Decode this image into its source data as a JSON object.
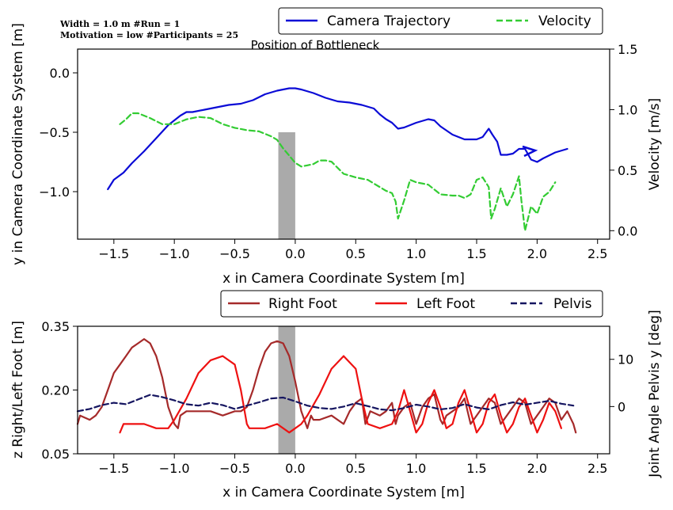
{
  "annotations": {
    "line1": "Width = 1.0 m        #Run = 1",
    "line2": "Motivation = low   #Participants = 25",
    "bottleneck_label": "Position of Bottleneck"
  },
  "chart_data": [
    {
      "type": "line",
      "panel": "top",
      "xlabel": "x in Camera Coordinate System [m]",
      "ylabel": "y in Camera Coordinate System [m]",
      "ylabel_right": "Velocity [m/s]",
      "xlim": [
        -1.8,
        2.6
      ],
      "ylim": [
        -1.4,
        0.2
      ],
      "ylim_right": [
        -0.07,
        1.5
      ],
      "xticks": [
        -1.5,
        -1.0,
        -0.5,
        0.0,
        0.5,
        1.0,
        1.5,
        2.0,
        2.5
      ],
      "xtick_labels": [
        "−1.5",
        "−1.0",
        "−0.5",
        "0.0",
        "0.5",
        "1.0",
        "1.5",
        "2.0",
        "2.5"
      ],
      "yticks": [
        0.0,
        -0.5,
        -1.0
      ],
      "ytick_labels": [
        "0.0",
        "−0.5",
        "−1.0"
      ],
      "yticks_right": [
        1.5,
        1.0,
        0.5,
        0.0
      ],
      "ytick_labels_right": [
        "1.5",
        "1.0",
        "0.5",
        "0.0"
      ],
      "legend_position": "top-right",
      "bottleneck": {
        "x": [
          -0.14,
          0.0
        ],
        "y": [
          -1.4,
          -0.5
        ],
        "color": "#aaaaaa"
      },
      "series": [
        {
          "name": "Camera Trajectory",
          "axis": "left",
          "color": "#0b0bd6",
          "style": "solid",
          "x": [
            -1.55,
            -1.5,
            -1.42,
            -1.35,
            -1.25,
            -1.15,
            -1.05,
            -0.95,
            -0.9,
            -0.85,
            -0.75,
            -0.65,
            -0.55,
            -0.45,
            -0.35,
            -0.25,
            -0.15,
            -0.1,
            -0.05,
            0.0,
            0.05,
            0.15,
            0.25,
            0.35,
            0.45,
            0.55,
            0.65,
            0.7,
            0.75,
            0.8,
            0.85,
            0.9,
            1.0,
            1.1,
            1.15,
            1.2,
            1.3,
            1.4,
            1.5,
            1.55,
            1.6,
            1.63,
            1.67,
            1.7,
            1.75,
            1.8,
            1.85,
            1.9,
            1.95,
            2.0,
            2.05,
            2.15,
            2.25
          ],
          "y": [
            -0.98,
            -0.9,
            -0.84,
            -0.76,
            -0.66,
            -0.55,
            -0.44,
            -0.36,
            -0.33,
            -0.33,
            -0.31,
            -0.29,
            -0.27,
            -0.26,
            -0.23,
            -0.18,
            -0.15,
            -0.14,
            -0.13,
            -0.13,
            -0.14,
            -0.17,
            -0.21,
            -0.24,
            -0.25,
            -0.27,
            -0.3,
            -0.35,
            -0.39,
            -0.42,
            -0.47,
            -0.46,
            -0.42,
            -0.39,
            -0.4,
            -0.45,
            -0.52,
            -0.56,
            -0.56,
            -0.54,
            -0.47,
            -0.52,
            -0.58,
            -0.69,
            -0.69,
            -0.68,
            -0.64,
            -0.64,
            -0.73,
            -0.75,
            -0.72,
            -0.67,
            -0.64
          ]
        },
        {
          "name": "Velocity",
          "axis": "right",
          "color": "#33cc33",
          "style": "dashed",
          "x": [
            -1.45,
            -1.4,
            -1.35,
            -1.3,
            -1.2,
            -1.1,
            -1.0,
            -0.9,
            -0.8,
            -0.7,
            -0.6,
            -0.5,
            -0.4,
            -0.3,
            -0.2,
            -0.15,
            -0.1,
            -0.05,
            0.0,
            0.05,
            0.1,
            0.15,
            0.2,
            0.25,
            0.3,
            0.4,
            0.5,
            0.6,
            0.7,
            0.75,
            0.8,
            0.83,
            0.85,
            0.9,
            0.95,
            1.0,
            1.1,
            1.2,
            1.3,
            1.35,
            1.4,
            1.45,
            1.5,
            1.55,
            1.6,
            1.62,
            1.65,
            1.7,
            1.75,
            1.8,
            1.85,
            1.87,
            1.9,
            1.95,
            2.0,
            2.05,
            2.1,
            2.15
          ],
          "y": [
            0.88,
            0.92,
            0.97,
            0.97,
            0.93,
            0.88,
            0.88,
            0.92,
            0.94,
            0.93,
            0.88,
            0.85,
            0.83,
            0.82,
            0.78,
            0.75,
            0.68,
            0.62,
            0.56,
            0.53,
            0.54,
            0.55,
            0.58,
            0.58,
            0.57,
            0.47,
            0.44,
            0.42,
            0.36,
            0.33,
            0.31,
            0.24,
            0.1,
            0.25,
            0.42,
            0.4,
            0.38,
            0.3,
            0.29,
            0.29,
            0.27,
            0.3,
            0.42,
            0.44,
            0.36,
            0.1,
            0.18,
            0.35,
            0.2,
            0.3,
            0.45,
            0.25,
            0.0,
            0.2,
            0.14,
            0.28,
            0.32,
            0.4
          ]
        }
      ]
    },
    {
      "type": "line",
      "panel": "bottom",
      "xlabel": "x in Camera Coordinate System [m]",
      "ylabel": "z Right/Left Foot [m]",
      "ylabel_right": "Joint Angle Pelvis y [deg]",
      "xlim": [
        -1.8,
        2.6
      ],
      "ylim": [
        0.05,
        0.35
      ],
      "ylim_right": [
        -10,
        17
      ],
      "xticks": [
        -1.5,
        -1.0,
        -0.5,
        0.0,
        0.5,
        1.0,
        1.5,
        2.0,
        2.5
      ],
      "xtick_labels": [
        "−1.5",
        "−1.0",
        "−0.5",
        "0.0",
        "0.5",
        "1.0",
        "1.5",
        "2.0",
        "2.5"
      ],
      "yticks": [
        0.35,
        0.2,
        0.05
      ],
      "ytick_labels": [
        "0.35",
        "0.20",
        "0.05"
      ],
      "yticks_right": [
        10,
        0
      ],
      "ytick_labels_right": [
        "10",
        "0"
      ],
      "legend_position": "top-right",
      "bottleneck": {
        "x": [
          -0.14,
          0.0
        ],
        "y": [
          0.05,
          0.35
        ],
        "color": "#aaaaaa"
      },
      "series": [
        {
          "name": "Right Foot",
          "axis": "left",
          "color": "#a52a2a",
          "style": "solid",
          "x": [
            -1.8,
            -1.78,
            -1.7,
            -1.65,
            -1.6,
            -1.55,
            -1.5,
            -1.45,
            -1.4,
            -1.35,
            -1.3,
            -1.25,
            -1.2,
            -1.15,
            -1.1,
            -1.05,
            -1.0,
            -0.97,
            -0.95,
            -0.9,
            -0.8,
            -0.7,
            -0.6,
            -0.5,
            -0.45,
            -0.4,
            -0.35,
            -0.3,
            -0.25,
            -0.2,
            -0.15,
            -0.1,
            -0.05,
            0.0,
            0.05,
            0.1,
            0.13,
            0.15,
            0.2,
            0.3,
            0.4,
            0.45,
            0.5,
            0.55,
            0.58,
            0.62,
            0.7,
            0.75,
            0.8,
            0.83,
            0.85,
            0.9,
            0.95,
            1.0,
            1.05,
            1.1,
            1.15,
            1.2,
            1.22,
            1.25,
            1.3,
            1.35,
            1.4,
            1.45,
            1.5,
            1.55,
            1.6,
            1.65,
            1.7,
            1.75,
            1.8,
            1.85,
            1.9,
            1.95,
            2.0,
            2.05,
            2.1,
            2.15,
            2.2,
            2.25,
            2.3,
            2.32
          ],
          "y": [
            0.12,
            0.14,
            0.13,
            0.14,
            0.16,
            0.2,
            0.24,
            0.26,
            0.28,
            0.3,
            0.31,
            0.32,
            0.31,
            0.28,
            0.23,
            0.16,
            0.12,
            0.11,
            0.14,
            0.15,
            0.15,
            0.15,
            0.14,
            0.15,
            0.15,
            0.16,
            0.2,
            0.25,
            0.29,
            0.31,
            0.315,
            0.31,
            0.28,
            0.22,
            0.15,
            0.11,
            0.14,
            0.13,
            0.13,
            0.14,
            0.12,
            0.15,
            0.17,
            0.18,
            0.12,
            0.15,
            0.14,
            0.15,
            0.17,
            0.12,
            0.14,
            0.16,
            0.17,
            0.12,
            0.16,
            0.18,
            0.19,
            0.13,
            0.12,
            0.14,
            0.15,
            0.16,
            0.18,
            0.12,
            0.14,
            0.16,
            0.18,
            0.17,
            0.12,
            0.14,
            0.16,
            0.18,
            0.17,
            0.12,
            0.14,
            0.16,
            0.18,
            0.17,
            0.13,
            0.15,
            0.12,
            0.1
          ]
        },
        {
          "name": "Left Foot",
          "axis": "left",
          "color": "#ee1111",
          "style": "solid",
          "x": [
            -1.45,
            -1.42,
            -1.35,
            -1.25,
            -1.15,
            -1.05,
            -1.0,
            -0.9,
            -0.8,
            -0.7,
            -0.6,
            -0.5,
            -0.45,
            -0.4,
            -0.38,
            -0.33,
            -0.25,
            -0.15,
            -0.05,
            0.0,
            0.05,
            0.1,
            0.2,
            0.3,
            0.4,
            0.5,
            0.55,
            0.6,
            0.7,
            0.8,
            0.85,
            0.9,
            0.95,
            1.0,
            1.05,
            1.1,
            1.15,
            1.2,
            1.25,
            1.3,
            1.35,
            1.4,
            1.45,
            1.5,
            1.55,
            1.6,
            1.65,
            1.7,
            1.75,
            1.8,
            1.85,
            1.9,
            1.95,
            2.0,
            2.05,
            2.1,
            2.15,
            2.2
          ],
          "y": [
            0.1,
            0.12,
            0.12,
            0.12,
            0.11,
            0.11,
            0.13,
            0.18,
            0.24,
            0.27,
            0.28,
            0.26,
            0.2,
            0.12,
            0.11,
            0.11,
            0.11,
            0.12,
            0.1,
            0.11,
            0.12,
            0.14,
            0.19,
            0.25,
            0.28,
            0.25,
            0.18,
            0.12,
            0.11,
            0.12,
            0.15,
            0.2,
            0.15,
            0.1,
            0.12,
            0.17,
            0.2,
            0.16,
            0.11,
            0.12,
            0.17,
            0.2,
            0.15,
            0.1,
            0.12,
            0.17,
            0.19,
            0.14,
            0.1,
            0.12,
            0.16,
            0.18,
            0.14,
            0.1,
            0.13,
            0.17,
            0.15,
            0.11
          ]
        },
        {
          "name": "Pelvis",
          "axis": "right",
          "color": "#151560",
          "style": "dashed",
          "x": [
            -1.8,
            -1.7,
            -1.6,
            -1.5,
            -1.4,
            -1.3,
            -1.2,
            -1.1,
            -1.0,
            -0.9,
            -0.8,
            -0.7,
            -0.6,
            -0.5,
            -0.4,
            -0.3,
            -0.2,
            -0.1,
            0.0,
            0.1,
            0.2,
            0.3,
            0.4,
            0.5,
            0.6,
            0.7,
            0.8,
            0.9,
            1.0,
            1.1,
            1.2,
            1.3,
            1.4,
            1.5,
            1.6,
            1.7,
            1.8,
            1.9,
            2.0,
            2.1,
            2.2,
            2.3
          ],
          "y": [
            -1.0,
            -0.5,
            0.3,
            0.8,
            0.5,
            1.5,
            2.5,
            2.0,
            1.3,
            0.5,
            0.2,
            0.8,
            0.3,
            -0.5,
            0.2,
            0.9,
            1.7,
            1.9,
            1.1,
            0.2,
            -0.3,
            -0.5,
            0.0,
            0.7,
            0.1,
            -0.6,
            -0.8,
            -0.3,
            0.4,
            0.0,
            -0.6,
            -0.3,
            0.5,
            -0.2,
            -0.6,
            0.3,
            0.9,
            0.4,
            0.8,
            1.2,
            0.6,
            0.2
          ]
        }
      ]
    }
  ]
}
